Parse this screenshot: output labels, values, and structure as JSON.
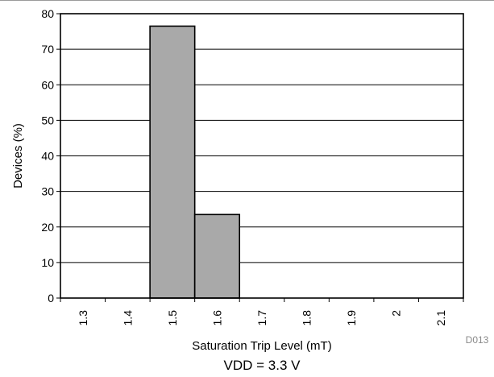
{
  "chart_data": {
    "type": "bar",
    "categories": [
      "1.3",
      "1.4",
      "1.5",
      "1.6",
      "1.7",
      "1.8",
      "1.9",
      "2",
      "2.1"
    ],
    "values": [
      0,
      0,
      76.5,
      23.5,
      0,
      0,
      0,
      0,
      0
    ],
    "ylim": [
      0,
      80
    ],
    "yticks": [
      "0",
      "10",
      "20",
      "30",
      "40",
      "50",
      "60",
      "70",
      "80"
    ],
    "ylabel": "Devices (%)",
    "xlabel": "Saturation Trip Level (mT)",
    "caption": "VDD = 3.3 V",
    "figure_id": "D013",
    "grid": true,
    "bar_color": "#a9a9a9",
    "bar_edge_color": "#000000"
  }
}
